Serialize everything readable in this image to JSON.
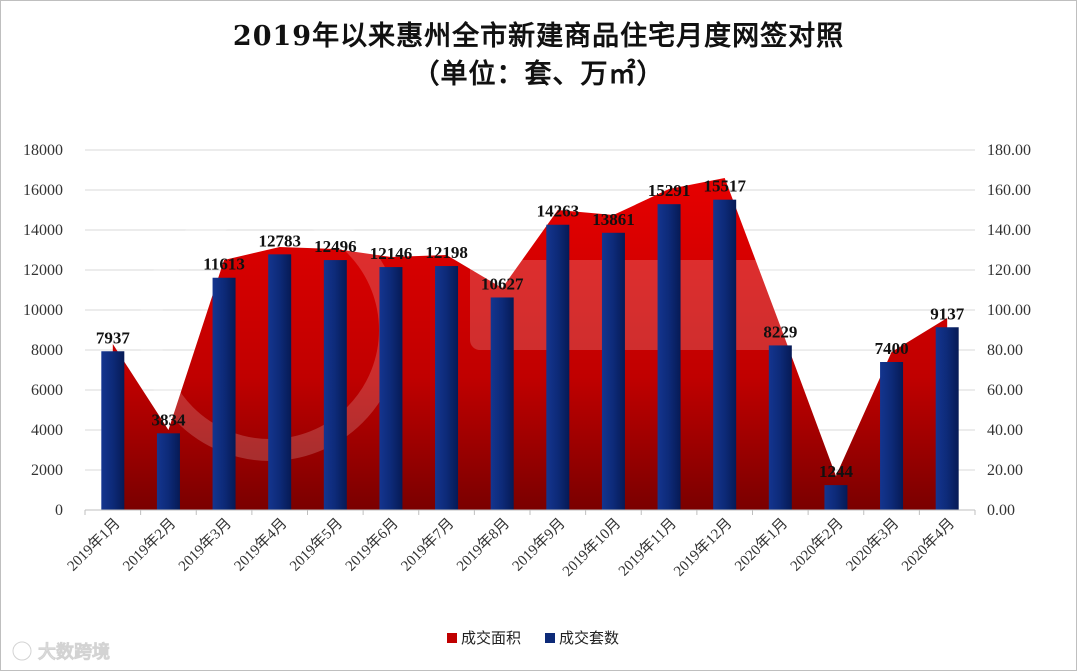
{
  "chart_data": {
    "type": "bar+area",
    "title": "2019年以来惠州全市新建商品住宅月度网签对照",
    "subtitle": "（单位：套、万㎡）",
    "categories": [
      "2019年1月",
      "2019年2月",
      "2019年3月",
      "2019年4月",
      "2019年5月",
      "2019年6月",
      "2019年7月",
      "2019年8月",
      "2019年9月",
      "2019年10月",
      "2019年11月",
      "2019年12月",
      "2020年1月",
      "2020年2月",
      "2020年3月",
      "2020年4月"
    ],
    "series": [
      {
        "name": "成交面积",
        "axis": "right",
        "type": "area",
        "color": "#d40000",
        "values": [
          83,
          40,
          125,
          131.5,
          130.5,
          126.5,
          127.5,
          111,
          150,
          147.5,
          160.5,
          166,
          92,
          17,
          79,
          96
        ]
      },
      {
        "name": "成交套数",
        "axis": "left",
        "type": "bar",
        "color": "#0a2a7a",
        "values": [
          7937,
          3834,
          11613,
          12783,
          12496,
          12146,
          12198,
          10627,
          14263,
          13861,
          15291,
          15517,
          8229,
          1244,
          7400,
          9137
        ]
      }
    ],
    "data_labels": [
      "7937",
      "3834",
      "11613",
      "12783",
      "12496",
      "12146",
      "12198",
      "10627",
      "14263",
      "13861",
      "15291",
      "15517",
      "8229",
      "1244",
      "7400",
      "9137"
    ],
    "y_left": {
      "min": 0,
      "max": 18000,
      "step": 2000,
      "ticks": [
        "0",
        "2000",
        "4000",
        "6000",
        "8000",
        "10000",
        "12000",
        "14000",
        "16000",
        "18000"
      ]
    },
    "y_right": {
      "min": 0,
      "max": 180,
      "step": 20,
      "ticks": [
        "0.00",
        "20.00",
        "40.00",
        "60.00",
        "80.00",
        "100.00",
        "120.00",
        "140.00",
        "160.00",
        "180.00"
      ]
    },
    "legend": {
      "position": "bottom",
      "items": [
        "成交面积",
        "成交套数"
      ]
    },
    "grid": true
  },
  "watermark": {
    "text": "大数跨境"
  }
}
